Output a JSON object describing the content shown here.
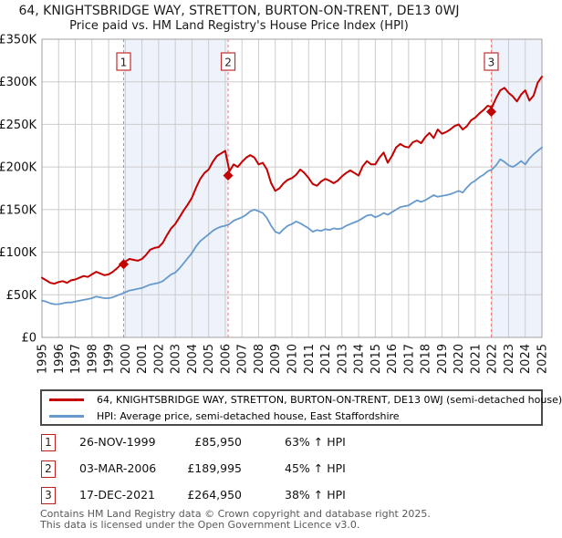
{
  "title": "64, KNIGHTSBRIDGE WAY, STRETTON, BURTON-ON-TRENT, DE13 0WJ",
  "subtitle": "Price paid vs. HM Land Registry's House Price Index (HPI)",
  "legend": {
    "items": [
      {
        "label": "64, KNIGHTSBRIDGE WAY, STRETTON, BURTON-ON-TRENT, DE13 0WJ (semi-detached house)",
        "color": "#c40000"
      },
      {
        "label": "HPI: Average price, semi-detached house, East Staffordshire",
        "color": "#6699cc"
      }
    ]
  },
  "transactions": [
    {
      "num": "1",
      "date": "26-NOV-1999",
      "price": "£85,950",
      "hpi": "63% ↑ HPI"
    },
    {
      "num": "2",
      "date": "03-MAR-2006",
      "price": "£189,995",
      "hpi": "45% ↑ HPI"
    },
    {
      "num": "3",
      "date": "17-DEC-2021",
      "price": "£264,950",
      "hpi": "38% ↑ HPI"
    }
  ],
  "footer": {
    "line1": "Contains HM Land Registry data © Crown copyright and database right 2025.",
    "line2": "This data is licensed under the Open Government Licence v3.0."
  },
  "chart_data": {
    "type": "line",
    "units": "GBP thousands",
    "xlim": [
      1995,
      2025
    ],
    "ylim": [
      0,
      350
    ],
    "x_start": 1995,
    "x_step": 0.25,
    "grid": true,
    "x_ticks": [
      1995,
      1996,
      1997,
      1998,
      1999,
      2000,
      2001,
      2002,
      2003,
      2004,
      2005,
      2006,
      2007,
      2008,
      2009,
      2010,
      2011,
      2012,
      2013,
      2014,
      2015,
      2016,
      2017,
      2018,
      2019,
      2020,
      2021,
      2022,
      2023,
      2024,
      2025
    ],
    "y_ticks": [
      {
        "value": 0,
        "label": "£0"
      },
      {
        "value": 50,
        "label": "£50K"
      },
      {
        "value": 100,
        "label": "£100K"
      },
      {
        "value": 150,
        "label": "£150K"
      },
      {
        "value": 200,
        "label": "£200K"
      },
      {
        "value": 250,
        "label": "£250K"
      },
      {
        "value": 300,
        "label": "£300K"
      },
      {
        "value": 350,
        "label": "£350K"
      }
    ],
    "series": [
      {
        "name": "64, KNIGHTSBRIDGE WAY, STRETTON, BURTON-ON-TRENT, DE13 0WJ (semi-detached house)",
        "color": "#c40000",
        "width": 2,
        "values": [
          70,
          67,
          64,
          63,
          65,
          66,
          64,
          67,
          68,
          70,
          72,
          71,
          74,
          77,
          75,
          73,
          74,
          77,
          81,
          86,
          89,
          92,
          91,
          90,
          92,
          97,
          103,
          105,
          106,
          111,
          120,
          128,
          133,
          141,
          149,
          156,
          164,
          176,
          186,
          193,
          197,
          206,
          213,
          216,
          219,
          195,
          203,
          200,
          206,
          211,
          214,
          211,
          203,
          205,
          197,
          181,
          172,
          175,
          181,
          185,
          187,
          191,
          197,
          193,
          187,
          180,
          178,
          183,
          186,
          184,
          181,
          184,
          189,
          193,
          196,
          193,
          190,
          201,
          207,
          203,
          203,
          211,
          217,
          205,
          213,
          223,
          227,
          224,
          223,
          229,
          231,
          228,
          235,
          240,
          234,
          244,
          239,
          241,
          244,
          248,
          250,
          244,
          248,
          255,
          258,
          263,
          267,
          272,
          270,
          281,
          290,
          293,
          287,
          283,
          277,
          285,
          290,
          278,
          284,
          299,
          306
        ]
      },
      {
        "name": "HPI: Average price, semi-detached house, East Staffordshire",
        "color": "#6699cc",
        "width": 1.8,
        "values": [
          43,
          42,
          40,
          39,
          39,
          40,
          41,
          41,
          42,
          43,
          44,
          45,
          46,
          48,
          47,
          46,
          46,
          47,
          49,
          51,
          53,
          55,
          56,
          57,
          58,
          60,
          62,
          63,
          64,
          66,
          70,
          74,
          76,
          81,
          87,
          93,
          99,
          107,
          113,
          117,
          121,
          125,
          128,
          130,
          131,
          133,
          137,
          139,
          141,
          144,
          148,
          150,
          148,
          146,
          140,
          131,
          124,
          122,
          127,
          131,
          133,
          136,
          134,
          131,
          128,
          124,
          126,
          125,
          127,
          126,
          128,
          127,
          128,
          131,
          133,
          135,
          137,
          140,
          143,
          144,
          141,
          143,
          146,
          144,
          147,
          150,
          153,
          154,
          155,
          158,
          161,
          159,
          161,
          164,
          167,
          165,
          166,
          167,
          168,
          170,
          172,
          170,
          176,
          181,
          184,
          188,
          191,
          195,
          197,
          202,
          209,
          206,
          202,
          200,
          203,
          207,
          203,
          210,
          215,
          219,
          223
        ]
      }
    ],
    "markers": [
      {
        "n": "1",
        "x": 1999.9,
        "y": 85.95
      },
      {
        "n": "2",
        "x": 2006.17,
        "y": 190.0
      },
      {
        "n": "3",
        "x": 2021.96,
        "y": 264.95
      }
    ],
    "bands": [
      [
        1999.9,
        2006.17
      ],
      [
        2021.96,
        2025
      ]
    ],
    "colors": {
      "band": "#eef2fb",
      "grid": "#cccccc",
      "frame": "#a0a0a0",
      "marker_line": "#e87c7c",
      "marker_box": "#c03030",
      "price": "#c40000"
    }
  }
}
